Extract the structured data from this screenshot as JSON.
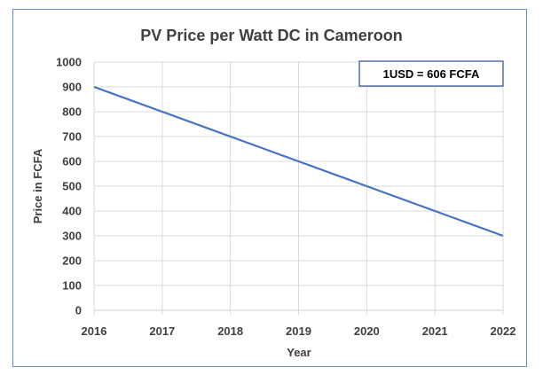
{
  "chart_data": {
    "type": "line",
    "title": "PV Price per Watt DC in Cameroon",
    "xlabel": "Year",
    "ylabel": "Price in FCFA",
    "x": [
      2016,
      2017,
      2018,
      2019,
      2020,
      2021,
      2022
    ],
    "x_tick_labels": [
      "2016",
      "2017",
      "2018",
      "2019",
      "2020",
      "2021",
      "2022"
    ],
    "series": [
      {
        "name": "Price per Watt DC",
        "values": [
          900,
          800,
          700,
          600,
          500,
          400,
          300
        ],
        "color": "#4472c4"
      }
    ],
    "xlim": [
      2016,
      2022
    ],
    "ylim": [
      0,
      1000
    ],
    "y_ticks": [
      0,
      100,
      200,
      300,
      400,
      500,
      600,
      700,
      800,
      900,
      1000
    ],
    "y_tick_labels": [
      "0",
      "100",
      "200",
      "300",
      "400",
      "500",
      "600",
      "700",
      "800",
      "900",
      "1000"
    ],
    "grid": true,
    "annotation": "1USD = 606 FCFA"
  },
  "colors": {
    "line": "#4472c4",
    "grid": "#d9d9d9",
    "frame": "#6f8fc7",
    "text": "#404040"
  }
}
